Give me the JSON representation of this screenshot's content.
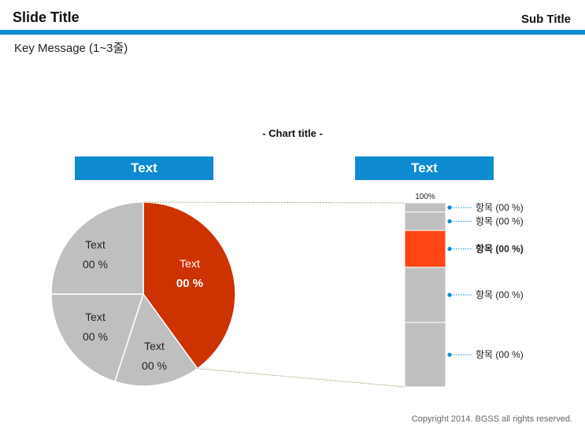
{
  "slide": {
    "title": "Slide Title",
    "subtitle": "Sub Title",
    "key_message": "Key Message (1~3줄)",
    "copyright": "Copyright 2014. BGSS all rights reserved."
  },
  "colors": {
    "accent_blue": "#0e8ad1",
    "highlight_red": "#cc3300",
    "highlight_orange": "#ff4513",
    "neutral_gray": "#bfbfbf"
  },
  "chart_data": {
    "type": "pie",
    "title": "- Chart title -",
    "left_header": "Text",
    "right_header": "Text",
    "pie": {
      "slices": [
        {
          "label": "Text",
          "value_label": "00 %",
          "share": 0.4,
          "color": "#cc3300",
          "highlight": true
        },
        {
          "label": "Text",
          "value_label": "00 %",
          "share": 0.15,
          "color": "#bfbfbf",
          "highlight": false
        },
        {
          "label": "Text",
          "value_label": "00 %",
          "share": 0.2,
          "color": "#bfbfbf",
          "highlight": false
        },
        {
          "label": "Text",
          "value_label": "00 %",
          "share": 0.25,
          "color": "#bfbfbf",
          "highlight": false
        }
      ]
    },
    "bar": {
      "top_label": "100%",
      "segments": [
        {
          "label": "항목 (00 %)",
          "share": 0.05,
          "color": "#bfbfbf",
          "highlight": false
        },
        {
          "label": "항목 (00 %)",
          "share": 0.1,
          "color": "#bfbfbf",
          "highlight": false
        },
        {
          "label": "항목 (00 %)",
          "share": 0.2,
          "color": "#ff4513",
          "highlight": true
        },
        {
          "label": "항목 (00 %)",
          "share": 0.3,
          "color": "#bfbfbf",
          "highlight": false
        },
        {
          "label": "항목 (00 %)",
          "share": 0.35,
          "color": "#bfbfbf",
          "highlight": false
        }
      ]
    }
  }
}
